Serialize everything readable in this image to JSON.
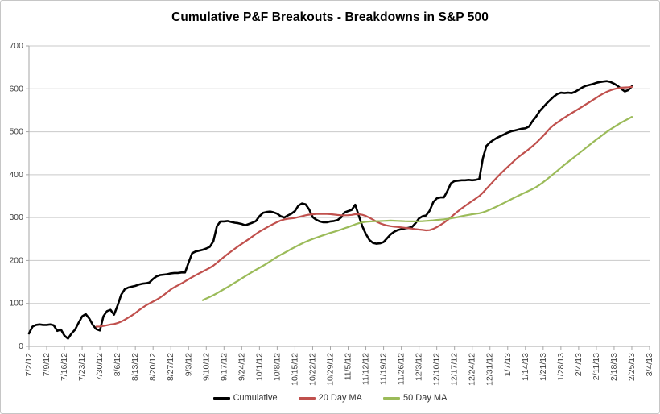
{
  "chart_data": {
    "type": "line",
    "title": "Cumulative P&F Breakouts - Breakdowns in S&P 500",
    "xlabel": "",
    "ylabel": "",
    "ylim": [
      0,
      700
    ],
    "y_ticks": [
      0,
      100,
      200,
      300,
      400,
      500,
      600,
      700
    ],
    "x_tick_labels": [
      "7/2/12",
      "7/9/12",
      "7/16/12",
      "7/23/12",
      "7/30/12",
      "8/6/12",
      "8/13/12",
      "8/20/12",
      "8/27/12",
      "9/3/12",
      "9/10/12",
      "9/17/12",
      "9/24/12",
      "10/1/12",
      "10/8/12",
      "10/15/12",
      "10/22/12",
      "10/29/12",
      "11/5/12",
      "11/12/12",
      "11/19/12",
      "11/26/12",
      "12/3/12",
      "12/10/12",
      "12/17/12",
      "12/24/12",
      "12/31/12",
      "1/7/13",
      "1/14/13",
      "1/21/13",
      "1/28/13",
      "2/4/13",
      "2/11/13",
      "2/18/13",
      "2/25/13",
      "3/4/13"
    ],
    "x_unit": "trading-days",
    "x_points_per_tick": 5,
    "x_total_slots": 175,
    "grid": "horizontal",
    "legend_position": "bottom",
    "grid_color": "#c9c9c9",
    "axis_color": "#a6a6a6",
    "tick_label_color": "#404040",
    "series": [
      {
        "name": "Cumulative",
        "color": "#000000",
        "line_width": 2.6,
        "start_index": 0,
        "values": [
          30,
          46,
          50,
          51,
          50,
          50,
          51,
          49,
          36,
          39,
          25,
          18,
          30,
          39,
          55,
          70,
          75,
          65,
          50,
          40,
          37,
          70,
          82,
          85,
          74,
          95,
          120,
          133,
          137,
          139,
          141,
          144,
          146,
          147,
          149,
          157,
          163,
          166,
          167,
          168,
          170,
          171,
          171,
          172,
          172,
          195,
          217,
          221,
          223,
          225,
          228,
          232,
          245,
          280,
          291,
          291,
          292,
          290,
          288,
          287,
          285,
          282,
          285,
          288,
          292,
          303,
          311,
          313,
          314,
          312,
          309,
          303,
          300,
          305,
          309,
          315,
          328,
          333,
          331,
          319,
          301,
          295,
          291,
          289,
          289,
          291,
          292,
          294,
          300,
          312,
          315,
          318,
          330,
          305,
          280,
          262,
          248,
          241,
          239,
          240,
          243,
          252,
          261,
          267,
          271,
          273,
          275,
          276,
          278,
          287,
          298,
          303,
          305,
          316,
          336,
          345,
          347,
          347,
          362,
          380,
          385,
          386,
          387,
          387,
          388,
          387,
          388,
          390,
          438,
          467,
          475,
          481,
          486,
          490,
          494,
          498,
          501,
          503,
          505,
          507,
          508,
          512,
          525,
          535,
          548,
          557,
          566,
          574,
          582,
          588,
          591,
          590,
          591,
          590,
          593,
          598,
          603,
          607,
          609,
          611,
          614,
          616,
          617,
          618,
          616,
          612,
          607,
          600,
          594,
          597,
          606
        ]
      },
      {
        "name": "20 Day MA",
        "color": "#C0504D",
        "line_width": 2.2,
        "derived": "moving_average",
        "window": 20,
        "of": "Cumulative"
      },
      {
        "name": "50 Day MA",
        "color": "#9BBB59",
        "line_width": 2.2,
        "derived": "moving_average",
        "window": 50,
        "of": "Cumulative"
      }
    ]
  }
}
